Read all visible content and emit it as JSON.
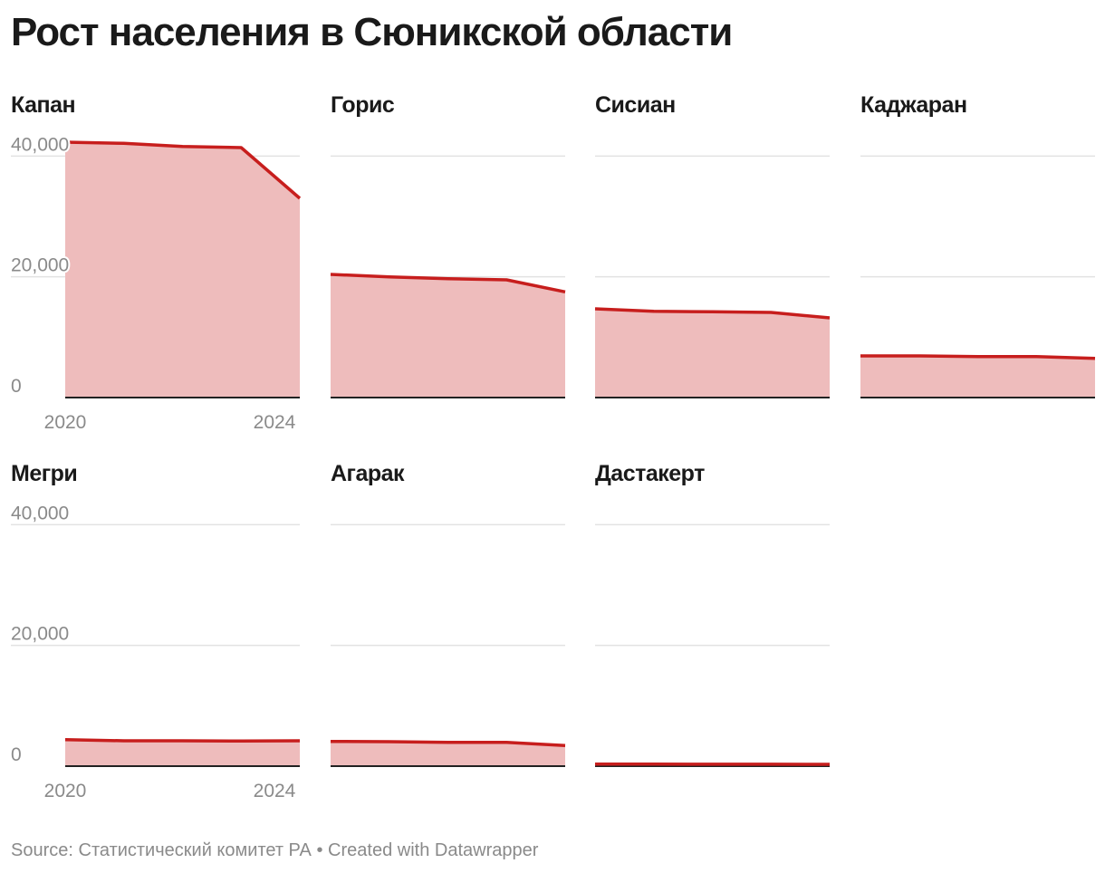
{
  "title": "Рост населения в Сюникской области",
  "footer": {
    "source_label": "Source:",
    "source": "Статистический комитет РА",
    "separator": "•",
    "credit": "Created with Datawrapper"
  },
  "colors": {
    "line": "#c71e1d",
    "area": "#eebcbc",
    "grid": "#e2e2e2",
    "baseline": "#222222",
    "tick_text": "#8a8a8a"
  },
  "chart_data": {
    "type": "area",
    "layout": "small-multiples",
    "x": [
      2020,
      2021,
      2022,
      2023,
      2024
    ],
    "x_ticks": [
      "2020",
      "2024"
    ],
    "ylim": [
      0,
      42000
    ],
    "y_ticks": [
      "0",
      "20,000",
      "40,000"
    ],
    "y_tick_values": [
      0,
      20000,
      40000
    ],
    "series": [
      {
        "name": "Капан",
        "values": [
          42300,
          42100,
          41600,
          41400,
          33000
        ]
      },
      {
        "name": "Горис",
        "values": [
          20400,
          20000,
          19700,
          19500,
          17500
        ]
      },
      {
        "name": "Сисиан",
        "values": [
          14700,
          14300,
          14200,
          14100,
          13200
        ]
      },
      {
        "name": "Каджаран",
        "values": [
          6900,
          6900,
          6800,
          6800,
          6500
        ]
      },
      {
        "name": "Мегри",
        "values": [
          4400,
          4200,
          4200,
          4150,
          4200
        ]
      },
      {
        "name": "Агарак",
        "values": [
          4100,
          4050,
          3950,
          3950,
          3400
        ]
      },
      {
        "name": "Дастакерт",
        "values": [
          350,
          350,
          320,
          320,
          300
        ]
      }
    ]
  }
}
